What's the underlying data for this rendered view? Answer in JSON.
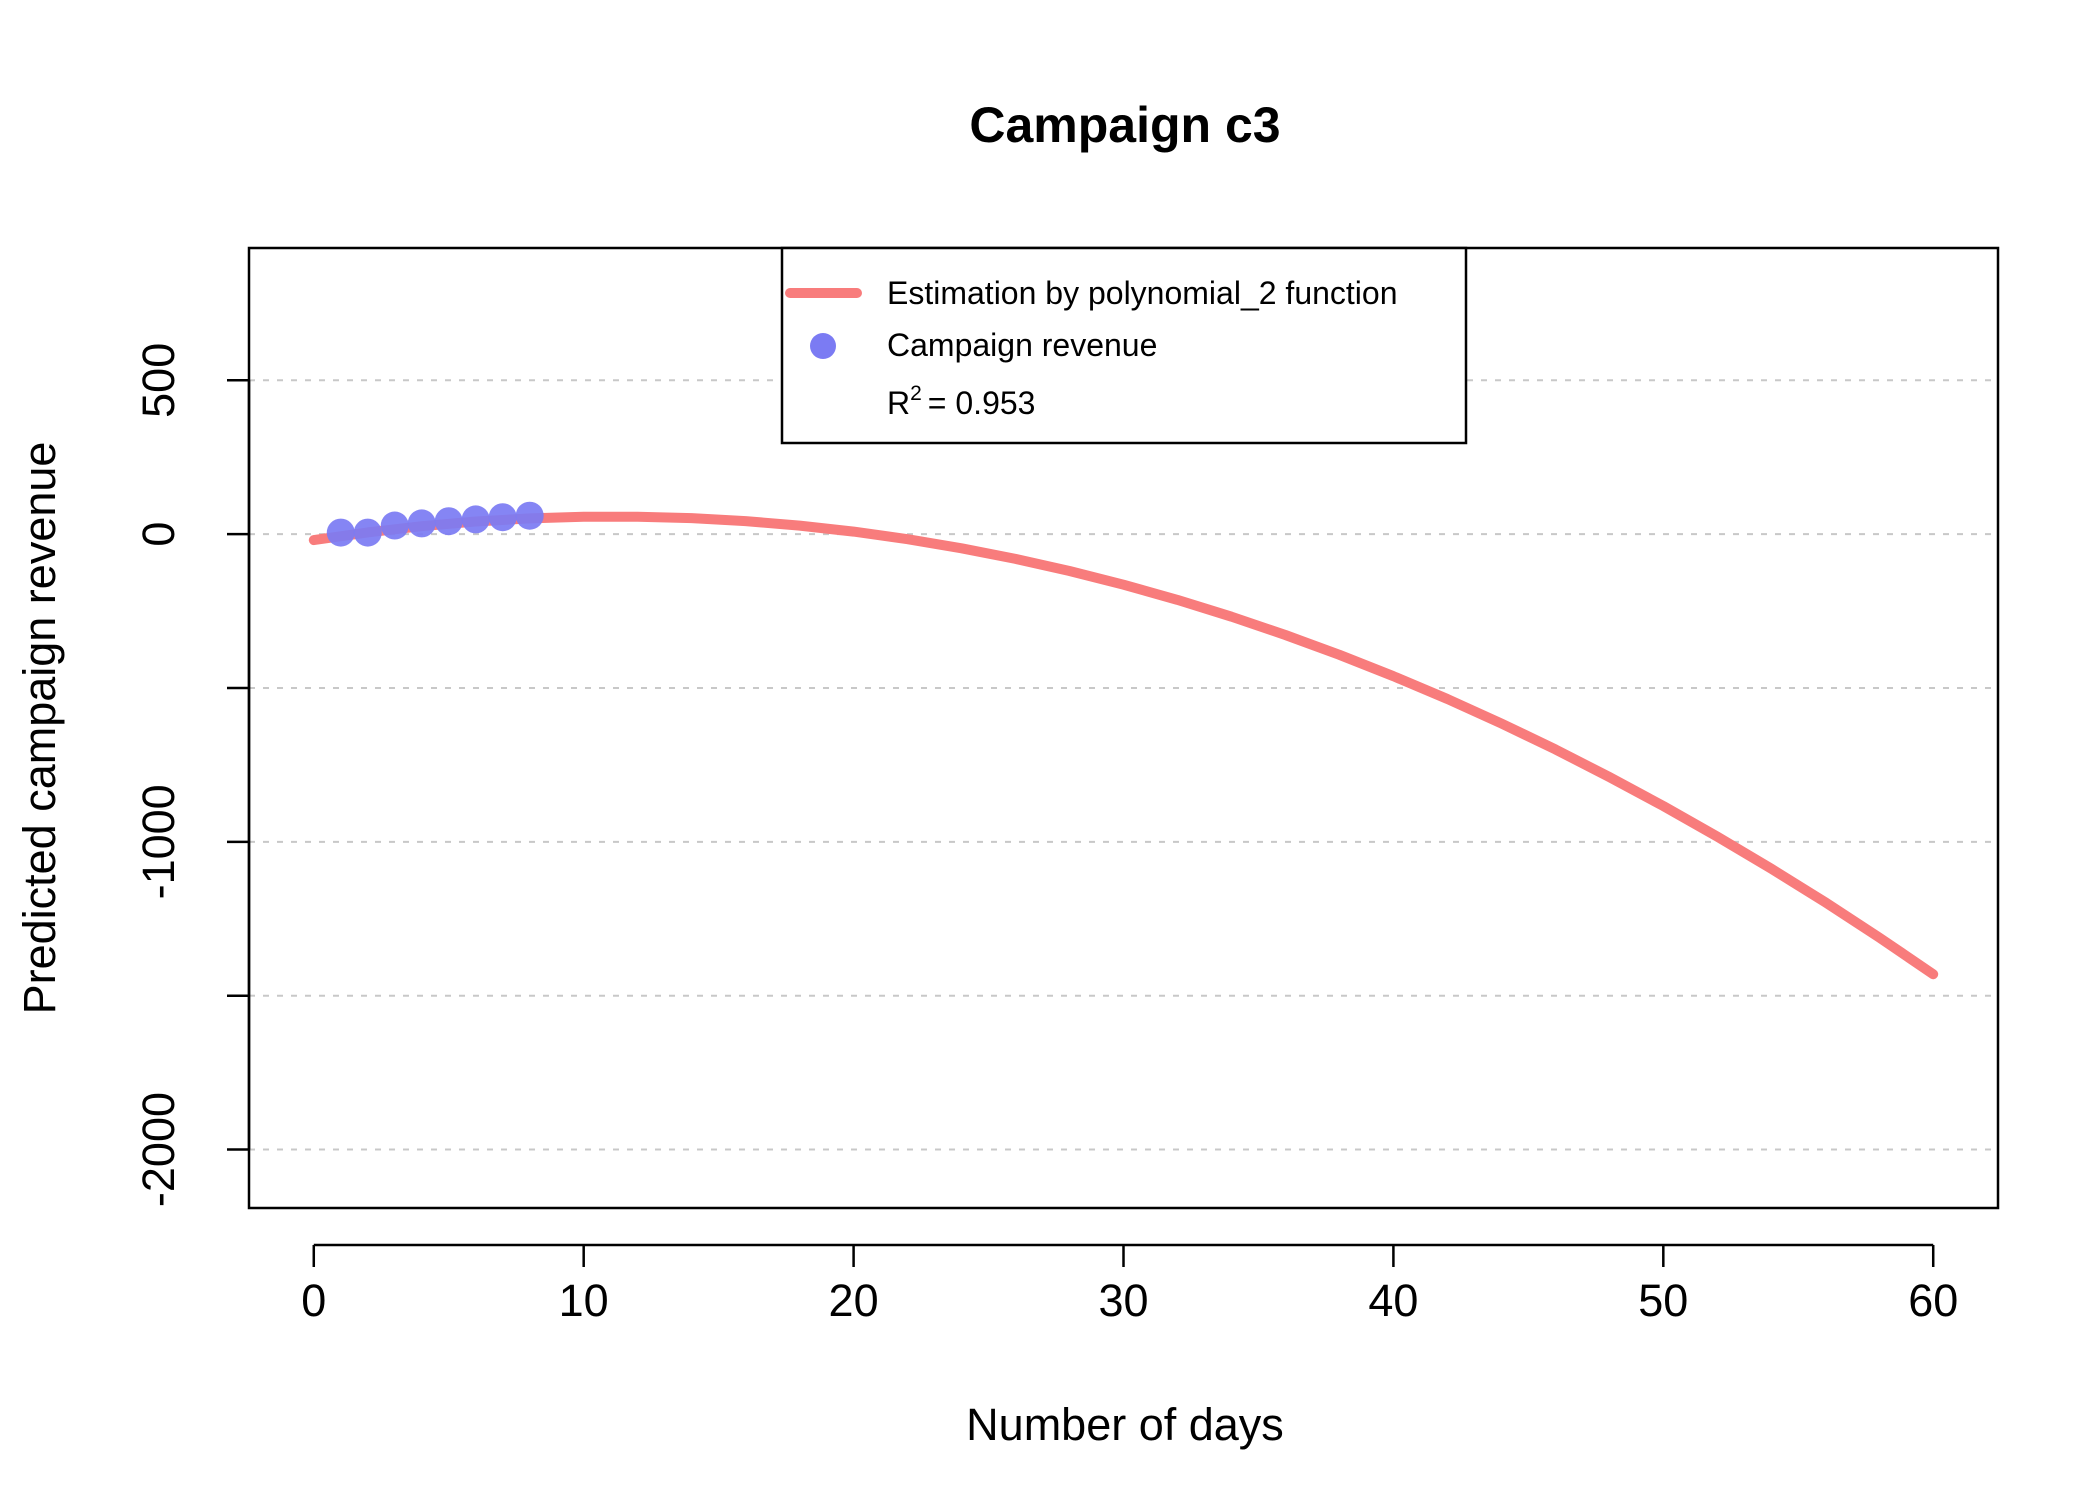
{
  "chart_data": {
    "type": "line",
    "title": "Campaign c3",
    "xlabel": "Number of days",
    "ylabel": "Predicted campaign revenue",
    "xlim": [
      -2.4,
      62.4
    ],
    "ylim": [
      -2190,
      930
    ],
    "x_ticks": [
      0,
      10,
      20,
      30,
      40,
      50,
      60
    ],
    "x_tick_labels": [
      "0",
      "10",
      "20",
      "30",
      "40",
      "50",
      "60"
    ],
    "y_ticks": [
      -2000,
      -1500,
      -1000,
      -500,
      0,
      500
    ],
    "y_tick_labels": [
      "-2000",
      "",
      "-1000",
      "",
      "0",
      "500"
    ],
    "grid": {
      "horizontal": true,
      "style": "dotted",
      "color": "#c8c8c8"
    },
    "legend": {
      "position": "top-center",
      "entries": [
        {
          "label": "Estimation by polynomial_2 function",
          "kind": "line",
          "color": "#f87c7c"
        },
        {
          "label": "Campaign revenue",
          "kind": "point",
          "color": "#7b7bf3"
        }
      ],
      "r2_label": "R",
      "r2_superscript": "2",
      "r2_value": "= 0.953"
    },
    "series": [
      {
        "name": "Estimation by polynomial_2 function",
        "kind": "line",
        "color": "#f87c7c",
        "x": [
          0,
          2,
          4,
          6,
          8,
          10,
          12,
          14,
          16,
          18,
          20,
          22,
          24,
          26,
          28,
          30,
          32,
          34,
          36,
          38,
          40,
          42,
          44,
          46,
          48,
          50,
          52,
          54,
          56,
          58,
          60
        ],
        "y": [
          -19.4,
          5.7,
          25.9,
          41.1,
          51.3,
          56.6,
          56.8,
          52.1,
          42.5,
          27.8,
          8.2,
          -16.4,
          -45.9,
          -80.4,
          -119.9,
          -164.3,
          -213.8,
          -268.2,
          -327.7,
          -392.1,
          -461.5,
          -535.9,
          -615.3,
          -699.7,
          -789.1,
          -883.5,
          -982.9,
          -1087.3,
          -1196.6,
          -1311.0,
          -1430.3
        ]
      },
      {
        "name": "Campaign revenue",
        "kind": "scatter",
        "color": "#7b7bf3",
        "x": [
          1,
          2,
          3,
          4,
          5,
          6,
          7,
          8
        ],
        "y": [
          5,
          5,
          28,
          35,
          42,
          48,
          55,
          60
        ]
      }
    ]
  }
}
